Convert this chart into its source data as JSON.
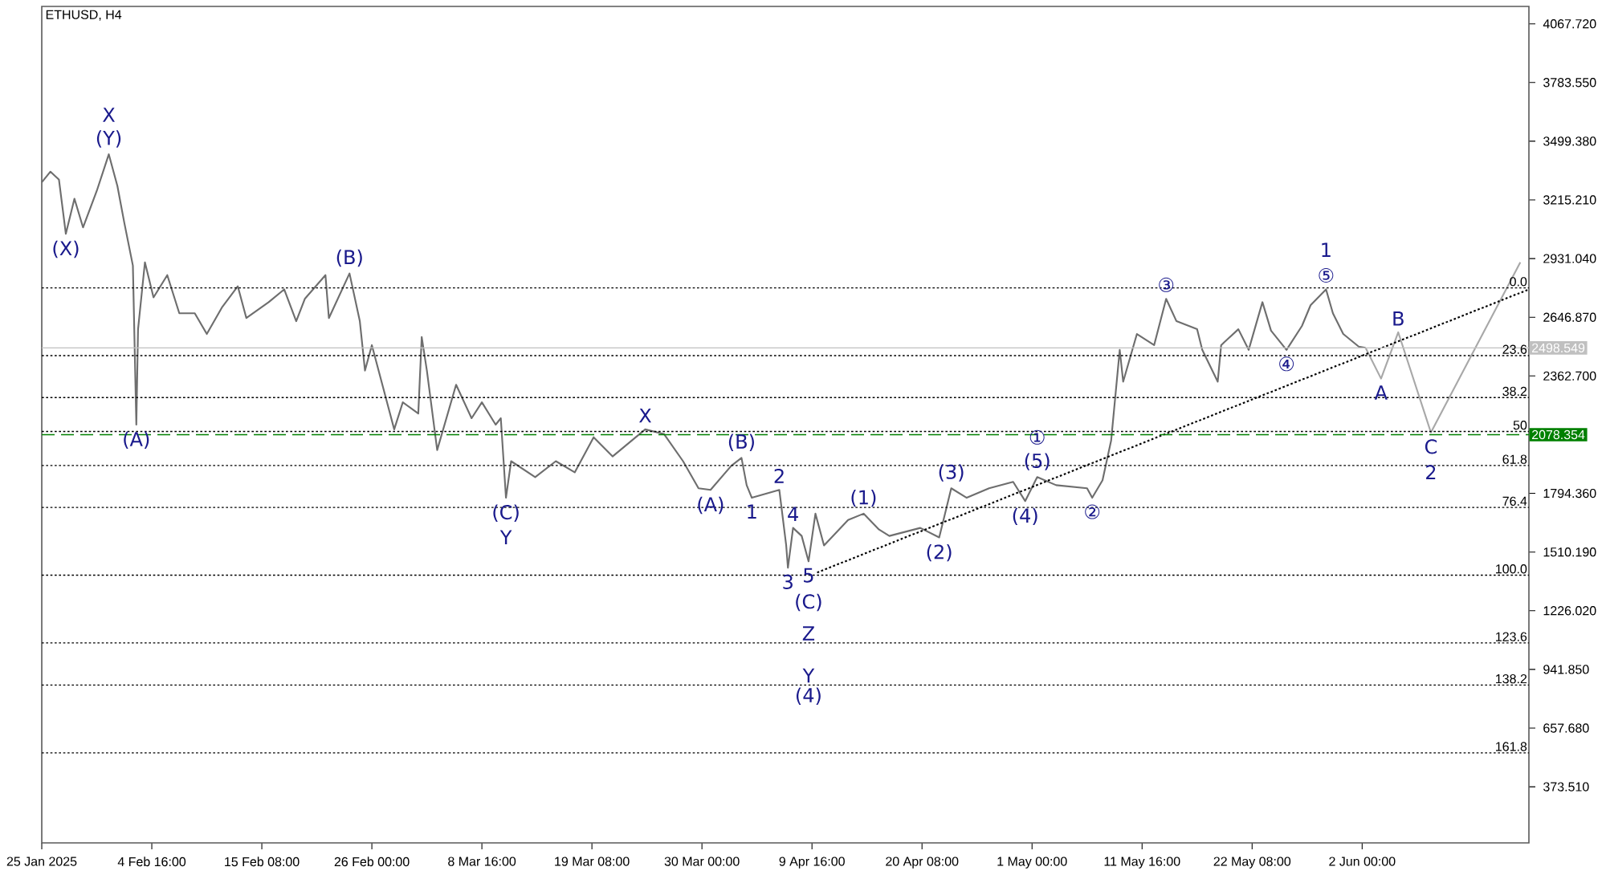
{
  "chart_data": {
    "type": "line",
    "title": "ETHUSD, H4",
    "xlim": [
      "2025-01-25T00:00",
      "2025-06-18T04:00"
    ],
    "ylim": [
      102,
      4152
    ],
    "xticks": [
      {
        "value": "2025-01-25T00:00",
        "label": "25 Jan 2025"
      },
      {
        "value": "2025-02-04T16:00",
        "label": "4 Feb 16:00"
      },
      {
        "value": "2025-02-15T08:00",
        "label": "15 Feb 08:00"
      },
      {
        "value": "2025-02-26T00:00",
        "label": "26 Feb 00:00"
      },
      {
        "value": "2025-03-08T16:00",
        "label": "8 Mar 16:00"
      },
      {
        "value": "2025-03-19T08:00",
        "label": "19 Mar 08:00"
      },
      {
        "value": "2025-03-30T00:00",
        "label": "30 Mar 00:00"
      },
      {
        "value": "2025-04-09T16:00",
        "label": "9 Apr 16:00"
      },
      {
        "value": "2025-04-20T08:00",
        "label": "20 Apr 08:00"
      },
      {
        "value": "2025-05-01T00:00",
        "label": "1 May 00:00"
      },
      {
        "value": "2025-05-11T16:00",
        "label": "11 May 16:00"
      },
      {
        "value": "2025-05-22T08:00",
        "label": "22 May 08:00"
      },
      {
        "value": "2025-06-02T00:00",
        "label": "2 Jun 00:00"
      }
    ],
    "yticks": [
      {
        "value": 4067.72,
        "label": "4067.720"
      },
      {
        "value": 3783.55,
        "label": "3783.550"
      },
      {
        "value": 3499.38,
        "label": "3499.380"
      },
      {
        "value": 3215.21,
        "label": "3215.210"
      },
      {
        "value": 2931.04,
        "label": "2931.040"
      },
      {
        "value": 2646.87,
        "label": "2646.870"
      },
      {
        "value": 2362.7,
        "label": "2362.700"
      },
      {
        "value": 1794.36,
        "label": "1794.360"
      },
      {
        "value": 1510.19,
        "label": "1510.190"
      },
      {
        "value": 1226.02,
        "label": "1226.020"
      },
      {
        "value": 941.85,
        "label": "941.850"
      },
      {
        "value": 657.68,
        "label": "657.680"
      },
      {
        "value": 373.51,
        "label": "373.510"
      }
    ],
    "series": [
      {
        "color": "#6e6e6e",
        "x": [
          "2025-01-25T00:00",
          "2025-01-25T20:00",
          "2025-01-26T16:00",
          "2025-01-27T08:00",
          "2025-01-28T04:00",
          "2025-01-29T00:00",
          "2025-01-30T08:00",
          "2025-01-31T12:00",
          "2025-02-01T08:00",
          "2025-02-02T00:00",
          "2025-02-02T20:00",
          "2025-02-03T04:00",
          "2025-02-03T08:00",
          "2025-02-04T00:00",
          "2025-02-04T20:00",
          "2025-02-06T04:00",
          "2025-02-07T08:00",
          "2025-02-08T20:00",
          "2025-02-10T00:00",
          "2025-02-11T12:00",
          "2025-02-13T00:00",
          "2025-02-13T20:00",
          "2025-02-16T00:00",
          "2025-02-17T12:00",
          "2025-02-18T16:00",
          "2025-02-19T12:00",
          "2025-02-21T12:00",
          "2025-02-21T20:00",
          "2025-02-23T20:00",
          "2025-02-24T20:00",
          "2025-02-25T08:00",
          "2025-02-26T00:00",
          "2025-02-28T04:00",
          "2025-03-01T00:00",
          "2025-03-02T12:00",
          "2025-03-02T20:00",
          "2025-03-03T08:00",
          "2025-03-04T08:00",
          "2025-03-06T04:00",
          "2025-03-07T16:00",
          "2025-03-08T16:00",
          "2025-03-10T00:00",
          "2025-03-10T12:00",
          "2025-03-11T00:00",
          "2025-03-11T12:00",
          "2025-03-13T20:00",
          "2025-03-15T20:00",
          "2025-03-17T16:00",
          "2025-03-19T12:00",
          "2025-03-21T08:00",
          "2025-03-24T12:00",
          "2025-03-26T08:00",
          "2025-03-28T04:00",
          "2025-03-29T16:00",
          "2025-03-30T20:00",
          "2025-04-01T20:00",
          "2025-04-02T20:00",
          "2025-04-03T08:00",
          "2025-04-03T20:00",
          "2025-04-06T12:00",
          "2025-04-07T04:00",
          "2025-04-07T08:00",
          "2025-04-07T20:00",
          "2025-04-08T16:00",
          "2025-04-09T08:00",
          "2025-04-10T00:00",
          "2025-04-10T20:00",
          "2025-04-13T04:00",
          "2025-04-14T16:00",
          "2025-04-16T04:00",
          "2025-04-17T04:00",
          "2025-04-20T04:00",
          "2025-04-22T00:00",
          "2025-04-23T04:00",
          "2025-04-24T16:00",
          "2025-04-26T20:00",
          "2025-04-29T04:00",
          "2025-04-30T08:00",
          "2025-05-01T12:00",
          "2025-05-03T08:00",
          "2025-05-06T08:00",
          "2025-05-06T20:00",
          "2025-05-07T20:00",
          "2025-05-08T16:00",
          "2025-05-09T12:00",
          "2025-05-09T20:00",
          "2025-05-11T04:00",
          "2025-05-12T20:00",
          "2025-05-14T00:00",
          "2025-05-15T00:00",
          "2025-05-17T00:00",
          "2025-05-17T12:00",
          "2025-05-19T00:00",
          "2025-05-19T08:00",
          "2025-05-21T00:00",
          "2025-05-22T00:00",
          "2025-05-23T08:00",
          "2025-05-24T04:00",
          "2025-05-25T16:00",
          "2025-05-27T04:00",
          "2025-05-28T00:00",
          "2025-05-29T12:00",
          "2025-05-30T04:00",
          "2025-05-31T04:00",
          "2025-06-01T16:00",
          "2025-06-02T08:00"
        ],
        "values": [
          3300,
          3352,
          3313,
          3051,
          3221,
          3082,
          3259,
          3436,
          3282,
          3105,
          2897,
          2127,
          2589,
          2913,
          2743,
          2851,
          2666,
          2666,
          2566,
          2697,
          2797,
          2643,
          2720,
          2782,
          2628,
          2736,
          2851,
          2643,
          2859,
          2628,
          2389,
          2512,
          2104,
          2235,
          2181,
          2551,
          2389,
          2004,
          2320,
          2158,
          2235,
          2127,
          2158,
          1773,
          1950,
          1873,
          1950,
          1896,
          2066,
          1973,
          2104,
          2081,
          1950,
          1819,
          1811,
          1927,
          1966,
          1834,
          1773,
          1811,
          1542,
          1434,
          1627,
          1588,
          1465,
          1696,
          1542,
          1665,
          1696,
          1619,
          1588,
          1627,
          1581,
          1819,
          1773,
          1819,
          1850,
          1757,
          1873,
          1834,
          1819,
          1773,
          1858,
          2050,
          2489,
          2335,
          2566,
          2512,
          2736,
          2628,
          2589,
          2489,
          2335,
          2512,
          2589,
          2489,
          2720,
          2582,
          2489,
          2605,
          2705,
          2782,
          2666,
          2566,
          2505,
          2499
        ]
      },
      {
        "color": "#a8a8a8",
        "x": [
          "2025-06-02T08:00",
          "2025-06-03T20:00",
          "2025-06-05T12:00",
          "2025-06-08T16:00",
          "2025-06-17T08:00"
        ],
        "values": [
          2499,
          2350,
          2574,
          2089,
          2913
        ]
      },
      {
        "color": "#000000",
        "line_style": "dotted",
        "x": [
          "2025-04-10T04:00",
          "2025-06-18T04:00"
        ],
        "values": [
          1411,
          2782
        ]
      }
    ],
    "ref_lines": [
      {
        "axis": "y",
        "value": 2498.549,
        "label": "2498.549",
        "color": "#c0c0c0",
        "line_style": "solid"
      },
      {
        "axis": "y",
        "value": 2078.354,
        "label": "2078.354",
        "color": "#008000",
        "line_style": "dashed"
      },
      {
        "axis": "y",
        "value": 2789,
        "color": "#000000",
        "line_style": "dotted"
      },
      {
        "axis": "y",
        "value": 2461,
        "color": "#000000",
        "line_style": "dotted"
      },
      {
        "axis": "y",
        "value": 2258,
        "color": "#000000",
        "line_style": "dotted"
      },
      {
        "axis": "y",
        "value": 2094,
        "color": "#000000",
        "line_style": "dotted"
      },
      {
        "axis": "y",
        "value": 1929,
        "color": "#000000",
        "line_style": "dotted"
      },
      {
        "axis": "y",
        "value": 1726,
        "color": "#000000",
        "line_style": "dotted"
      },
      {
        "axis": "y",
        "value": 1398,
        "color": "#000000",
        "line_style": "dotted"
      },
      {
        "axis": "y",
        "value": 1070,
        "color": "#000000",
        "line_style": "dotted"
      },
      {
        "axis": "y",
        "value": 866,
        "color": "#000000",
        "line_style": "dotted"
      },
      {
        "axis": "y",
        "value": 538,
        "color": "#000000",
        "line_style": "dotted"
      }
    ],
    "annotations": [
      {
        "text": "(Y)",
        "x": "2025-01-31T12:00",
        "y": 3436
      },
      {
        "text": "X",
        "x": "2025-01-31T12:00",
        "y": 3436
      },
      {
        "text": "(X)",
        "x": "2025-01-27T08:00",
        "y": 3051
      },
      {
        "text": "(A)",
        "x": "2025-02-03T04:00",
        "y": 2127
      },
      {
        "text": "(B)",
        "x": "2025-02-23T20:00",
        "y": 2859
      },
      {
        "text": "(C)",
        "x": "2025-03-11T00:00",
        "y": 1773
      },
      {
        "text": "Y",
        "x": "2025-03-11T00:00",
        "y": 1773
      },
      {
        "text": "X",
        "x": "2025-03-24T12:00",
        "y": 2104
      },
      {
        "text": "(B)",
        "x": "2025-04-02T20:00",
        "y": 1966
      },
      {
        "text": "(A)",
        "x": "2025-03-30T20:00",
        "y": 1811
      },
      {
        "text": "2",
        "x": "2025-04-06T12:00",
        "y": 1811
      },
      {
        "text": "1",
        "x": "2025-04-03T20:00",
        "y": 1773
      },
      {
        "text": "4",
        "x": "2025-04-07T20:00",
        "y": 1627
      },
      {
        "text": "3",
        "x": "2025-04-07T08:00",
        "y": 1434
      },
      {
        "text": "5",
        "x": "2025-04-09T08:00",
        "y": 1465
      },
      {
        "text": "(C)",
        "x": "2025-04-09T08:00",
        "y": 1465
      },
      {
        "text": "Z",
        "x": "2025-04-09T08:00",
        "y": 1070
      },
      {
        "text": "Y",
        "x": "2025-04-09T08:00",
        "y": 866
      },
      {
        "text": "(4)",
        "x": "2025-04-09T08:00",
        "y": 866
      },
      {
        "text": "(1)",
        "x": "2025-04-14T16:00",
        "y": 1696
      },
      {
        "text": "(2)",
        "x": "2025-04-22T00:00",
        "y": 1581
      },
      {
        "text": "(3)",
        "x": "2025-04-23T04:00",
        "y": 1819
      },
      {
        "text": "(4)",
        "x": "2025-04-30T08:00",
        "y": 1757
      },
      {
        "text": "(5)",
        "x": "2025-05-01T12:00",
        "y": 1873
      },
      {
        "text": "①",
        "x": "2025-05-01T12:00",
        "y": 1873
      },
      {
        "text": "②",
        "x": "2025-05-06T20:00",
        "y": 1773
      },
      {
        "text": "③",
        "x": "2025-05-14T00:00",
        "y": 2736
      },
      {
        "text": "④",
        "x": "2025-05-25T16:00",
        "y": 2489
      },
      {
        "text": "⑤",
        "x": "2025-05-29T12:00",
        "y": 2782
      },
      {
        "text": "1",
        "x": "2025-05-29T12:00",
        "y": 2782
      },
      {
        "text": "A",
        "x": "2025-06-03T20:00",
        "y": 2350
      },
      {
        "text": "B",
        "x": "2025-06-05T12:00",
        "y": 2574
      },
      {
        "text": "C",
        "x": "2025-06-08T16:00",
        "y": 2089
      },
      {
        "text": "2",
        "x": "2025-06-08T16:00",
        "y": 2089
      },
      {
        "text": "0.0",
        "x": "2025-06-18T04:00",
        "y": 2789
      },
      {
        "text": "23.6",
        "x": "2025-06-18T04:00",
        "y": 2461
      },
      {
        "text": "38.2",
        "x": "2025-06-18T04:00",
        "y": 2258
      },
      {
        "text": "50",
        "x": "2025-06-18T04:00",
        "y": 2094
      },
      {
        "text": "61.8",
        "x": "2025-06-18T04:00",
        "y": 1929
      },
      {
        "text": "76.4",
        "x": "2025-06-18T04:00",
        "y": 1726
      },
      {
        "text": "100.0",
        "x": "2025-06-18T04:00",
        "y": 1398
      },
      {
        "text": "123.6",
        "x": "2025-06-18T04:00",
        "y": 1070
      },
      {
        "text": "138.2",
        "x": "2025-06-18T04:00",
        "y": 866
      },
      {
        "text": "161.8",
        "x": "2025-06-18T04:00",
        "y": 538
      }
    ]
  }
}
